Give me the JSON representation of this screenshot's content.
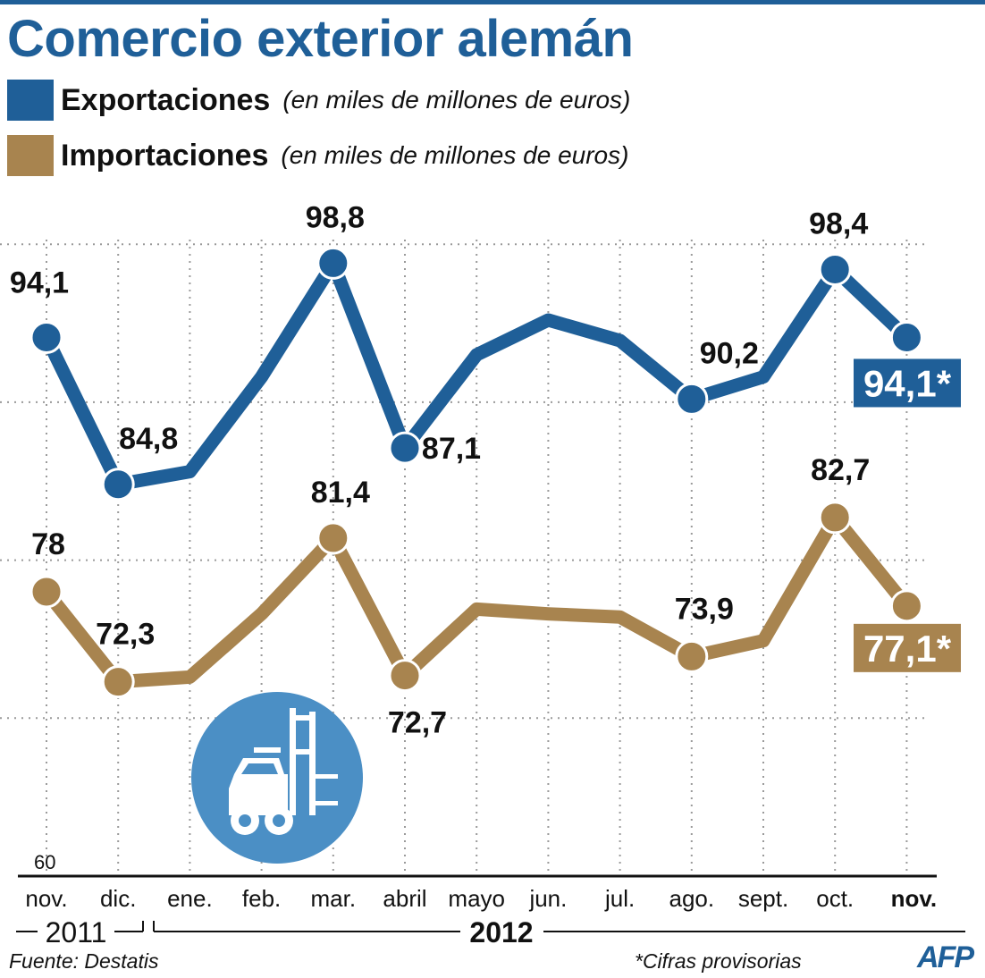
{
  "header": {
    "title": "Comercio exterior alemán"
  },
  "legend": {
    "exports_label": "Exportaciones",
    "imports_label": "Importaciones",
    "unit": "(en miles de millones de euros)"
  },
  "colors": {
    "exports": "#1f5f98",
    "imports": "#a8844f",
    "grid": "#9a9a9a"
  },
  "chart_data": {
    "type": "line",
    "title": "Comercio exterior alemán",
    "xlabel": "",
    "ylabel": "",
    "ylim": [
      60,
      105
    ],
    "y_tick_labels": [
      "60"
    ],
    "grid": true,
    "legend_position": "top-left",
    "categories": [
      "nov.",
      "dic.",
      "ene.",
      "feb.",
      "mar.",
      "abril",
      "mayo",
      "jun.",
      "jul.",
      "ago.",
      "sept.",
      "oct.",
      "nov."
    ],
    "year_labels": [
      "2011",
      "2012"
    ],
    "series": [
      {
        "name": "Exportaciones",
        "values": [
          94.1,
          84.8,
          85.6,
          91.6,
          98.8,
          87.1,
          93.0,
          95.2,
          93.9,
          90.2,
          91.6,
          98.4,
          94.1
        ],
        "labels": [
          "94,1",
          "84,8",
          "",
          "",
          "98,8",
          "87,1",
          "",
          "",
          "",
          "90,2",
          "",
          "98,4",
          "94,1*"
        ]
      },
      {
        "name": "Importaciones",
        "values": [
          78.0,
          72.3,
          72.6,
          76.6,
          81.4,
          72.7,
          76.9,
          76.6,
          76.4,
          73.9,
          74.9,
          82.7,
          77.1
        ],
        "labels": [
          "78",
          "72,3",
          "",
          "",
          "81,4",
          "72,7",
          "",
          "",
          "",
          "73,9",
          "",
          "82,7",
          "77,1*"
        ]
      }
    ]
  },
  "footer": {
    "source": "Fuente: Destatis",
    "note": "*Cifras provisorias",
    "agency": "AFP"
  }
}
